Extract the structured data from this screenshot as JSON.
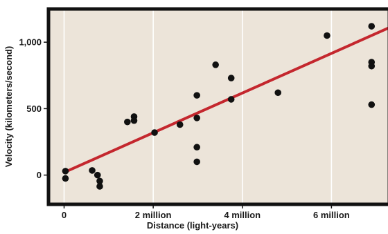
{
  "chart_data": {
    "type": "scatter",
    "title": "",
    "xlabel": "Distance (light-years)",
    "ylabel": "Velocity (kilometers/second)",
    "xlim": [
      -0.35,
      7.3
    ],
    "ylim": [
      -220,
      1250
    ],
    "x_unit": "million light-years",
    "x_ticks": [
      {
        "value": 0,
        "label": "0"
      },
      {
        "value": 2,
        "label": "2 million"
      },
      {
        "value": 4,
        "label": "4 million"
      },
      {
        "value": 6,
        "label": "6 million"
      }
    ],
    "y_ticks": [
      {
        "value": 0,
        "label": "0"
      },
      {
        "value": 500,
        "label": "500"
      },
      {
        "value": 1000,
        "label": "1,000"
      }
    ],
    "grid": "vertical",
    "colors": {
      "plot_background": "#ece4d9",
      "frame": "#111111",
      "gridline": "#ffffff",
      "points": "#111111",
      "fit_line": "#c4272e"
    },
    "points": [
      {
        "x": 0.03,
        "y": 30
      },
      {
        "x": 0.03,
        "y": -25
      },
      {
        "x": 0.63,
        "y": 35
      },
      {
        "x": 0.75,
        "y": 0
      },
      {
        "x": 0.8,
        "y": -45
      },
      {
        "x": 0.8,
        "y": -85
      },
      {
        "x": 1.42,
        "y": 400
      },
      {
        "x": 1.57,
        "y": 440
      },
      {
        "x": 1.57,
        "y": 410
      },
      {
        "x": 2.03,
        "y": 320
      },
      {
        "x": 2.6,
        "y": 380
      },
      {
        "x": 2.98,
        "y": 600
      },
      {
        "x": 2.98,
        "y": 430
      },
      {
        "x": 2.98,
        "y": 210
      },
      {
        "x": 2.98,
        "y": 100
      },
      {
        "x": 3.4,
        "y": 830
      },
      {
        "x": 3.75,
        "y": 730
      },
      {
        "x": 3.75,
        "y": 570
      },
      {
        "x": 4.8,
        "y": 620
      },
      {
        "x": 5.9,
        "y": 1050
      },
      {
        "x": 6.9,
        "y": 1120
      },
      {
        "x": 6.9,
        "y": 850
      },
      {
        "x": 6.9,
        "y": 820
      },
      {
        "x": 6.9,
        "y": 530
      }
    ],
    "fit_line": {
      "x": [
        0,
        7.3
      ],
      "y": [
        20,
        1110
      ]
    }
  }
}
